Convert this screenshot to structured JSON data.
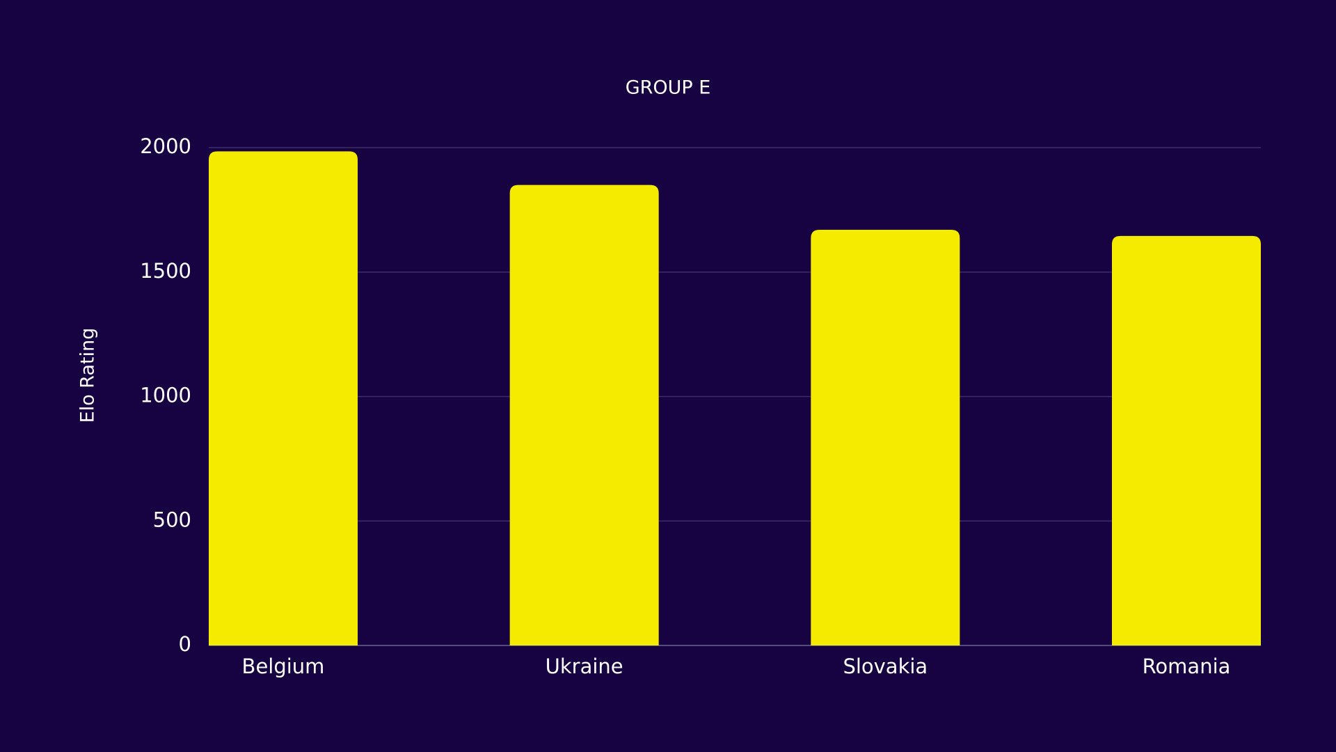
{
  "chart_data": {
    "type": "bar",
    "title": "GROUP E",
    "y_label": "Elo Rating",
    "categories": [
      "Belgium",
      "Ukraine",
      "Slovakia",
      "Romania"
    ],
    "values": [
      1985,
      1850,
      1670,
      1645
    ],
    "color": "#f5eb00",
    "ylim": [
      0,
      2000
    ],
    "yticks": [
      0,
      500,
      1000,
      1500,
      2000
    ],
    "grid": true
  }
}
